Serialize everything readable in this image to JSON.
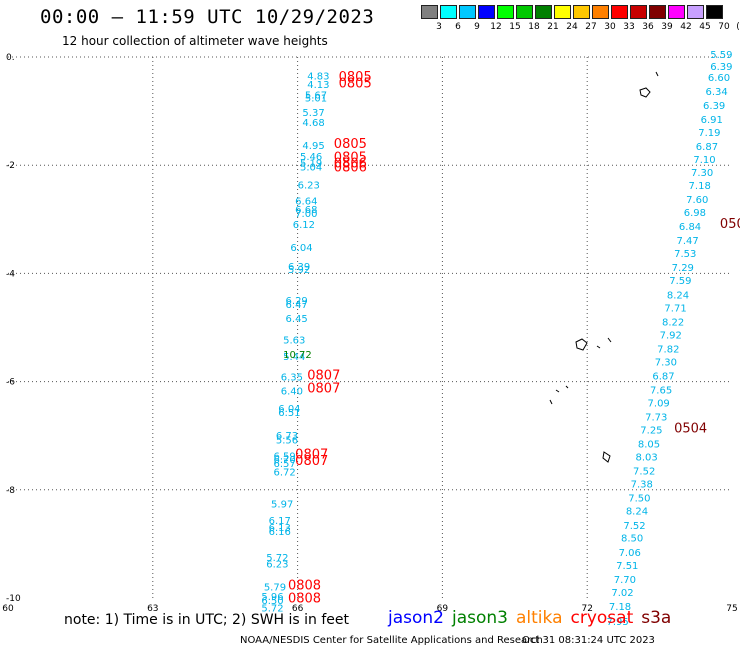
{
  "header": {
    "title": "00:00 – 11:59 UTC 10/29/2023",
    "subtitle": "12 hour collection of altimeter wave heights"
  },
  "colorbar": {
    "colors": [
      "#808080",
      "#00ffff",
      "#00c8ff",
      "#0000ff",
      "#00ff00",
      "#00c800",
      "#008000",
      "#ffff00",
      "#ffc800",
      "#ff8000",
      "#ff0000",
      "#c80000",
      "#800000",
      "#ff00ff",
      "#c8a0ff",
      "#000000"
    ],
    "labels": [
      "3",
      "6",
      "9",
      "12",
      "15",
      "18",
      "21",
      "24",
      "27",
      "30",
      "33",
      "36",
      "39",
      "42",
      "45",
      "70",
      "(ft)"
    ]
  },
  "footer": {
    "note": "note:  1) Time is in UTC;  2) SWH is in feet",
    "credit": "NOAA/NESDIS Center for Satellite Applications and Research",
    "timestamp": "Oct 31 08:31:24 UTC 2023"
  },
  "legend": [
    {
      "label": "jason2",
      "color": "#0000ff"
    },
    {
      "label": "jason3",
      "color": "#008000"
    },
    {
      "label": "altika",
      "color": "#ff8000"
    },
    {
      "label": "cryosat",
      "color": "#ff0000"
    },
    {
      "label": "s3a",
      "color": "#800000"
    }
  ],
  "chart_data": {
    "type": "scatter",
    "title": "00:00 – 11:59 UTC 10/29/2023",
    "xlim": [
      60,
      75
    ],
    "ylim": [
      -10,
      0
    ],
    "xticks": [
      "60",
      "63",
      "66",
      "69",
      "72",
      "75"
    ],
    "yticks": [
      "0.",
      "-2",
      "-4",
      "-6",
      "-8",
      "-10"
    ],
    "xtick_values": [
      60,
      63,
      66,
      69,
      72,
      75
    ],
    "ytick_values": [
      0,
      -2,
      -4,
      -6,
      -8,
      -10
    ],
    "grid": true,
    "track1_color": "#00b4e8",
    "track1": [
      {
        "x": 66.2,
        "y": -0.42,
        "v": "4.83"
      },
      {
        "x": 66.2,
        "y": -0.57,
        "v": "4.13"
      },
      {
        "x": 66.15,
        "y": -0.77,
        "v": "5.67"
      },
      {
        "x": 66.15,
        "y": -0.82,
        "v": "5.01"
      },
      {
        "x": 66.1,
        "y": -1.09,
        "v": "5.37"
      },
      {
        "x": 66.1,
        "y": -1.28,
        "v": "4.68"
      },
      {
        "x": 66.1,
        "y": -1.7,
        "v": "4.95"
      },
      {
        "x": 66.05,
        "y": -1.9,
        "v": "5.46"
      },
      {
        "x": 66.05,
        "y": -2.02,
        "v": "5.19"
      },
      {
        "x": 66.05,
        "y": -2.1,
        "v": "5.04"
      },
      {
        "x": 66.0,
        "y": -2.43,
        "v": "6.23"
      },
      {
        "x": 65.95,
        "y": -2.73,
        "v": "6.64"
      },
      {
        "x": 65.95,
        "y": -2.88,
        "v": "6.68"
      },
      {
        "x": 65.95,
        "y": -2.96,
        "v": "7.00"
      },
      {
        "x": 65.9,
        "y": -3.16,
        "v": "6.12"
      },
      {
        "x": 65.85,
        "y": -3.59,
        "v": "6.04"
      },
      {
        "x": 65.8,
        "y": -3.94,
        "v": "6.39"
      },
      {
        "x": 65.8,
        "y": -3.99,
        "v": "5.92"
      },
      {
        "x": 65.75,
        "y": -4.57,
        "v": "6.29"
      },
      {
        "x": 65.75,
        "y": -4.64,
        "v": "6.47"
      },
      {
        "x": 65.75,
        "y": -4.9,
        "v": "6.45"
      },
      {
        "x": 65.7,
        "y": -5.3,
        "v": "5.63"
      },
      {
        "x": 65.7,
        "y": -5.6,
        "v": "5.44"
      },
      {
        "x": 65.65,
        "y": -5.98,
        "v": "6.35"
      },
      {
        "x": 65.65,
        "y": -6.24,
        "v": "6.40"
      },
      {
        "x": 65.6,
        "y": -6.56,
        "v": "6.04"
      },
      {
        "x": 65.6,
        "y": -6.64,
        "v": "6.51"
      },
      {
        "x": 65.55,
        "y": -7.06,
        "v": "6.73"
      },
      {
        "x": 65.55,
        "y": -7.14,
        "v": "5.56"
      },
      {
        "x": 65.5,
        "y": -7.44,
        "v": "6.59"
      },
      {
        "x": 65.5,
        "y": -7.5,
        "v": "6.70"
      },
      {
        "x": 65.5,
        "y": -7.58,
        "v": "6.57"
      },
      {
        "x": 65.5,
        "y": -7.74,
        "v": "6.72"
      },
      {
        "x": 65.45,
        "y": -8.33,
        "v": "5.97"
      },
      {
        "x": 65.4,
        "y": -8.63,
        "v": "6.17"
      },
      {
        "x": 65.4,
        "y": -8.76,
        "v": "6.13"
      },
      {
        "x": 65.4,
        "y": -8.84,
        "v": "6.16"
      },
      {
        "x": 65.35,
        "y": -9.32,
        "v": "5.72"
      },
      {
        "x": 65.35,
        "y": -9.44,
        "v": "6.23"
      },
      {
        "x": 65.3,
        "y": -9.86,
        "v": "5.79"
      },
      {
        "x": 65.25,
        "y": -10.04,
        "v": "5.96"
      },
      {
        "x": 65.25,
        "y": -10.11,
        "v": "6.50"
      },
      {
        "x": 65.25,
        "y": -10.25,
        "v": "5.72"
      }
    ],
    "track2_color": "#00b4e8",
    "track2": [
      {
        "x": 74.55,
        "y": -0.02,
        "v": "5.59"
      },
      {
        "x": 74.55,
        "y": -0.24,
        "v": "6.39"
      },
      {
        "x": 74.5,
        "y": -0.44,
        "v": "6.60"
      },
      {
        "x": 74.45,
        "y": -0.7,
        "v": "6.34"
      },
      {
        "x": 74.4,
        "y": -0.96,
        "v": "6.39"
      },
      {
        "x": 74.35,
        "y": -1.22,
        "v": "6.91"
      },
      {
        "x": 74.3,
        "y": -1.46,
        "v": "7.19"
      },
      {
        "x": 74.25,
        "y": -1.72,
        "v": "6.87"
      },
      {
        "x": 74.2,
        "y": -1.96,
        "v": "7.10"
      },
      {
        "x": 74.15,
        "y": -2.2,
        "v": "7.30"
      },
      {
        "x": 74.1,
        "y": -2.44,
        "v": "7.18"
      },
      {
        "x": 74.05,
        "y": -2.7,
        "v": "7.60"
      },
      {
        "x": 74.0,
        "y": -2.94,
        "v": "6.98"
      },
      {
        "x": 73.9,
        "y": -3.2,
        "v": "6.84"
      },
      {
        "x": 73.85,
        "y": -3.46,
        "v": "7.47"
      },
      {
        "x": 73.8,
        "y": -3.7,
        "v": "7.53"
      },
      {
        "x": 73.75,
        "y": -3.96,
        "v": "7.29"
      },
      {
        "x": 73.7,
        "y": -4.2,
        "v": "7.59"
      },
      {
        "x": 73.65,
        "y": -4.46,
        "v": "8.24"
      },
      {
        "x": 73.6,
        "y": -4.7,
        "v": "7.71"
      },
      {
        "x": 73.55,
        "y": -4.96,
        "v": "8.22"
      },
      {
        "x": 73.5,
        "y": -5.2,
        "v": "7.92"
      },
      {
        "x": 73.45,
        "y": -5.46,
        "v": "7.82"
      },
      {
        "x": 73.4,
        "y": -5.7,
        "v": "7.30"
      },
      {
        "x": 73.35,
        "y": -5.96,
        "v": "6.87"
      },
      {
        "x": 73.3,
        "y": -6.22,
        "v": "7.65"
      },
      {
        "x": 73.25,
        "y": -6.46,
        "v": "7.09"
      },
      {
        "x": 73.2,
        "y": -6.72,
        "v": "7.73"
      },
      {
        "x": 73.1,
        "y": -6.96,
        "v": "7.25"
      },
      {
        "x": 73.05,
        "y": -7.22,
        "v": "8.05"
      },
      {
        "x": 73.0,
        "y": -7.46,
        "v": "8.03"
      },
      {
        "x": 72.95,
        "y": -7.72,
        "v": "7.52"
      },
      {
        "x": 72.9,
        "y": -7.96,
        "v": "7.38"
      },
      {
        "x": 72.85,
        "y": -8.22,
        "v": "7.50"
      },
      {
        "x": 72.8,
        "y": -8.46,
        "v": "8.24"
      },
      {
        "x": 72.75,
        "y": -8.72,
        "v": "7.52"
      },
      {
        "x": 72.7,
        "y": -8.96,
        "v": "8.50"
      },
      {
        "x": 72.65,
        "y": -9.22,
        "v": "7.06"
      },
      {
        "x": 72.6,
        "y": -9.46,
        "v": "7.51"
      },
      {
        "x": 72.55,
        "y": -9.72,
        "v": "7.70"
      },
      {
        "x": 72.5,
        "y": -9.96,
        "v": "7.02"
      },
      {
        "x": 72.45,
        "y": -10.22,
        "v": "7.18"
      },
      {
        "x": 72.4,
        "y": -10.5,
        "v": "7.95"
      }
    ],
    "jason3_color": "#008000",
    "jason3_points": [
      {
        "x": 65.7,
        "y": -5.56,
        "v": "10.72"
      }
    ],
    "time_labels_color": "#ff0000",
    "time_labels": [
      {
        "x": 66.85,
        "y": -0.44,
        "v": "0805"
      },
      {
        "x": 66.85,
        "y": -0.56,
        "v": "0805"
      },
      {
        "x": 66.75,
        "y": -1.68,
        "v": "0805"
      },
      {
        "x": 66.75,
        "y": -1.93,
        "v": "0805"
      },
      {
        "x": 66.75,
        "y": -2.04,
        "v": "0806"
      },
      {
        "x": 66.75,
        "y": -2.12,
        "v": "0806"
      },
      {
        "x": 66.2,
        "y": -5.96,
        "v": "0807"
      },
      {
        "x": 66.2,
        "y": -6.2,
        "v": "0807"
      },
      {
        "x": 65.95,
        "y": -7.42,
        "v": "0807"
      },
      {
        "x": 65.95,
        "y": -7.54,
        "v": "0807"
      },
      {
        "x": 65.8,
        "y": -9.84,
        "v": "0808"
      },
      {
        "x": 65.8,
        "y": -10.08,
        "v": "0808"
      }
    ],
    "s3a_color": "#800000",
    "s3a_labels": [
      {
        "x": 74.75,
        "y": -3.16,
        "v": "050"
      },
      {
        "x": 73.8,
        "y": -6.94,
        "v": "0504"
      }
    ]
  }
}
